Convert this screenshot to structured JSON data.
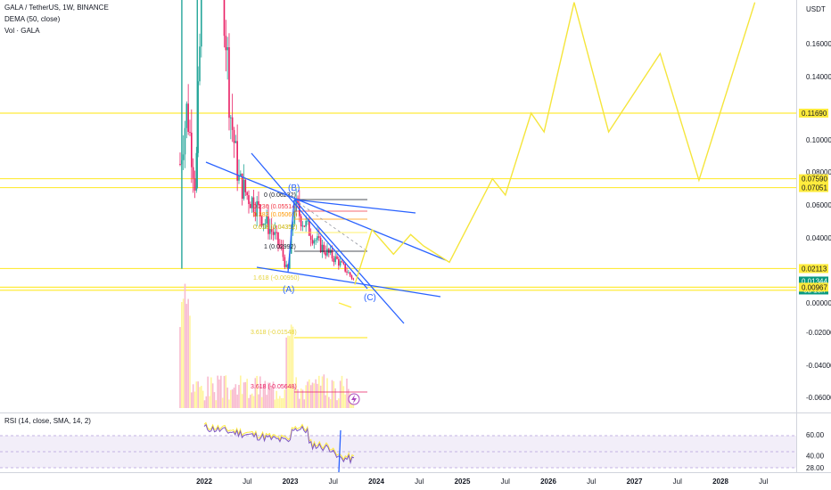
{
  "header": {
    "symbol_line": "GALA / TetherUS, 1W, BINANCE",
    "indicator_1": "DEMA (50, close)",
    "indicator_2": "Vol · GALA"
  },
  "currency_label": "USDT",
  "rsi_label": "RSI (14, close, SMA, 14, 2)",
  "countdown": "6d 13h",
  "colors": {
    "level_line": "#ffeb3b",
    "projection": "#f5e53b",
    "trendline": "#2962ff",
    "wave_label": "#2962ff",
    "candle_up": "#26a69a",
    "candle_down": "#e91e63",
    "current_price": "#089981",
    "rsi_line": "#7e57c2",
    "rsi_band": "#ede7f6"
  },
  "chart_data": {
    "type": "line",
    "price_axis": {
      "ticks": [
        "0.16000",
        "0.14000",
        "0.10000",
        "0.08000",
        "0.06000",
        "0.04000",
        "0.00000",
        "-0.02000",
        "-0.04000",
        "-0.06000"
      ],
      "tick_values": [
        0.16,
        0.14,
        0.1,
        0.08,
        0.06,
        0.04,
        0.0,
        -0.02,
        -0.04,
        -0.06
      ],
      "tick_y": [
        49,
        86,
        157,
        193,
        230,
        267,
        340,
        373,
        410,
        446
      ]
    },
    "time_axis": {
      "labels": [
        "2022",
        "Jul",
        "2023",
        "Jul",
        "2024",
        "Jul",
        "2025",
        "Jul",
        "2026",
        "Jul",
        "2027",
        "Jul",
        "2028",
        "Jul"
      ],
      "bold": [
        true,
        false,
        true,
        false,
        true,
        false,
        true,
        false,
        true,
        false,
        true,
        false,
        true,
        false
      ]
    },
    "price_tags": [
      {
        "label": "0.11690",
        "value": 0.1169,
        "style": "level"
      },
      {
        "label": "0.07590",
        "value": 0.0759,
        "style": "level"
      },
      {
        "label": "0.07051",
        "value": 0.07051,
        "style": "level"
      },
      {
        "label": "0.02113",
        "value": 0.02113,
        "style": "level"
      },
      {
        "label": "0.01344",
        "value": 0.01344,
        "style": "current"
      },
      {
        "label": "0.00967",
        "value": 0.00967,
        "style": "level"
      }
    ],
    "wave_labels": [
      "(B)",
      "(A)",
      "(C)"
    ],
    "fib_labels": [
      "0 (0.06232)",
      "0.236 (0.05514)",
      "0.382 (0.05069)",
      "0.618 (0.04352)",
      "1 (0.02992)",
      "1.618 (-0.00950)",
      "3.618 (-0.01548)",
      "3.618 (-0.05648)"
    ],
    "projection_path": [
      [
        2023.75,
        0.0113
      ],
      [
        2023.95,
        0.045
      ],
      [
        2024.2,
        0.03
      ],
      [
        2024.4,
        0.042
      ],
      [
        2024.55,
        0.035
      ],
      [
        2024.85,
        0.025
      ],
      [
        2025.35,
        0.0759
      ],
      [
        2025.5,
        0.066
      ],
      [
        2025.8,
        0.1169
      ],
      [
        2025.95,
        0.105
      ],
      [
        2026.3,
        0.185
      ],
      [
        2026.7,
        0.105
      ],
      [
        2027.3,
        0.154
      ],
      [
        2027.75,
        0.075
      ],
      [
        2028.4,
        0.185
      ]
    ],
    "rsi_axis": {
      "ticks": [
        "60.00",
        "40.00",
        "28.00"
      ],
      "tick_values": [
        60,
        40,
        28
      ]
    }
  }
}
